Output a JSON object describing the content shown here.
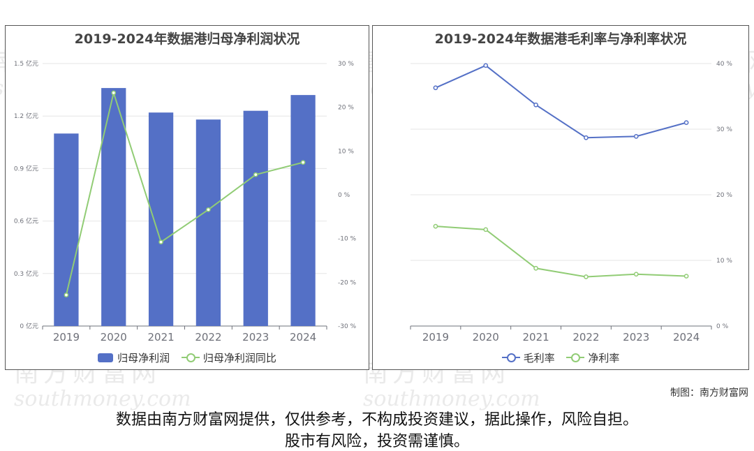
{
  "watermark": {
    "cn": "南方财富网",
    "en": "southmoney.com"
  },
  "credit": "制图：南方财富网",
  "disclaimer": [
    "数据由南方财富网提供，仅供参考，不构成投资建议，据此操作，风险自担。",
    "股市有风险，投资需谨慎。"
  ],
  "chart_data": [
    {
      "type": "bar",
      "title": "2019-2024年数据港归母净利润状况",
      "categories": [
        "2019",
        "2020",
        "2021",
        "2022",
        "2023",
        "2024"
      ],
      "series": [
        {
          "name": "归母净利润",
          "type": "bar",
          "axis": "left",
          "color": "#5470c6",
          "values": [
            1.1,
            1.36,
            1.22,
            1.18,
            1.23,
            1.32
          ]
        },
        {
          "name": "归母净利润同比",
          "type": "line",
          "axis": "right",
          "color": "#91cc75",
          "values": [
            -22.9,
            23.3,
            -10.8,
            -3.4,
            4.6,
            7.4
          ]
        }
      ],
      "left_axis": {
        "ticks": [
          "0 亿元",
          "0.3 亿元",
          "0.6 亿元",
          "0.9 亿元",
          "1.2 亿元",
          "1.5 亿元"
        ],
        "ylim": [
          0,
          1.5
        ]
      },
      "right_axis": {
        "ticks": [
          "-30 %",
          "-20 %",
          "-10 %",
          "0 %",
          "10 %",
          "20 %",
          "30 %"
        ],
        "ylim": [
          -30,
          30
        ]
      },
      "legend": "bottom",
      "grid": true
    },
    {
      "type": "line",
      "title": "2019-2024年数据港毛利率与净利率状况",
      "categories": [
        "2019",
        "2020",
        "2021",
        "2022",
        "2023",
        "2024"
      ],
      "series": [
        {
          "name": "毛利率",
          "color": "#5470c6",
          "values": [
            36.3,
            39.7,
            33.7,
            28.7,
            28.9,
            31.0
          ]
        },
        {
          "name": "净利率",
          "color": "#91cc75",
          "values": [
            15.2,
            14.7,
            8.8,
            7.5,
            7.9,
            7.6
          ]
        }
      ],
      "right_axis": {
        "ticks": [
          "0 %",
          "10 %",
          "20 %",
          "30 %",
          "40 %"
        ],
        "ylim": [
          0,
          40
        ]
      },
      "legend": "bottom",
      "grid": true
    }
  ]
}
